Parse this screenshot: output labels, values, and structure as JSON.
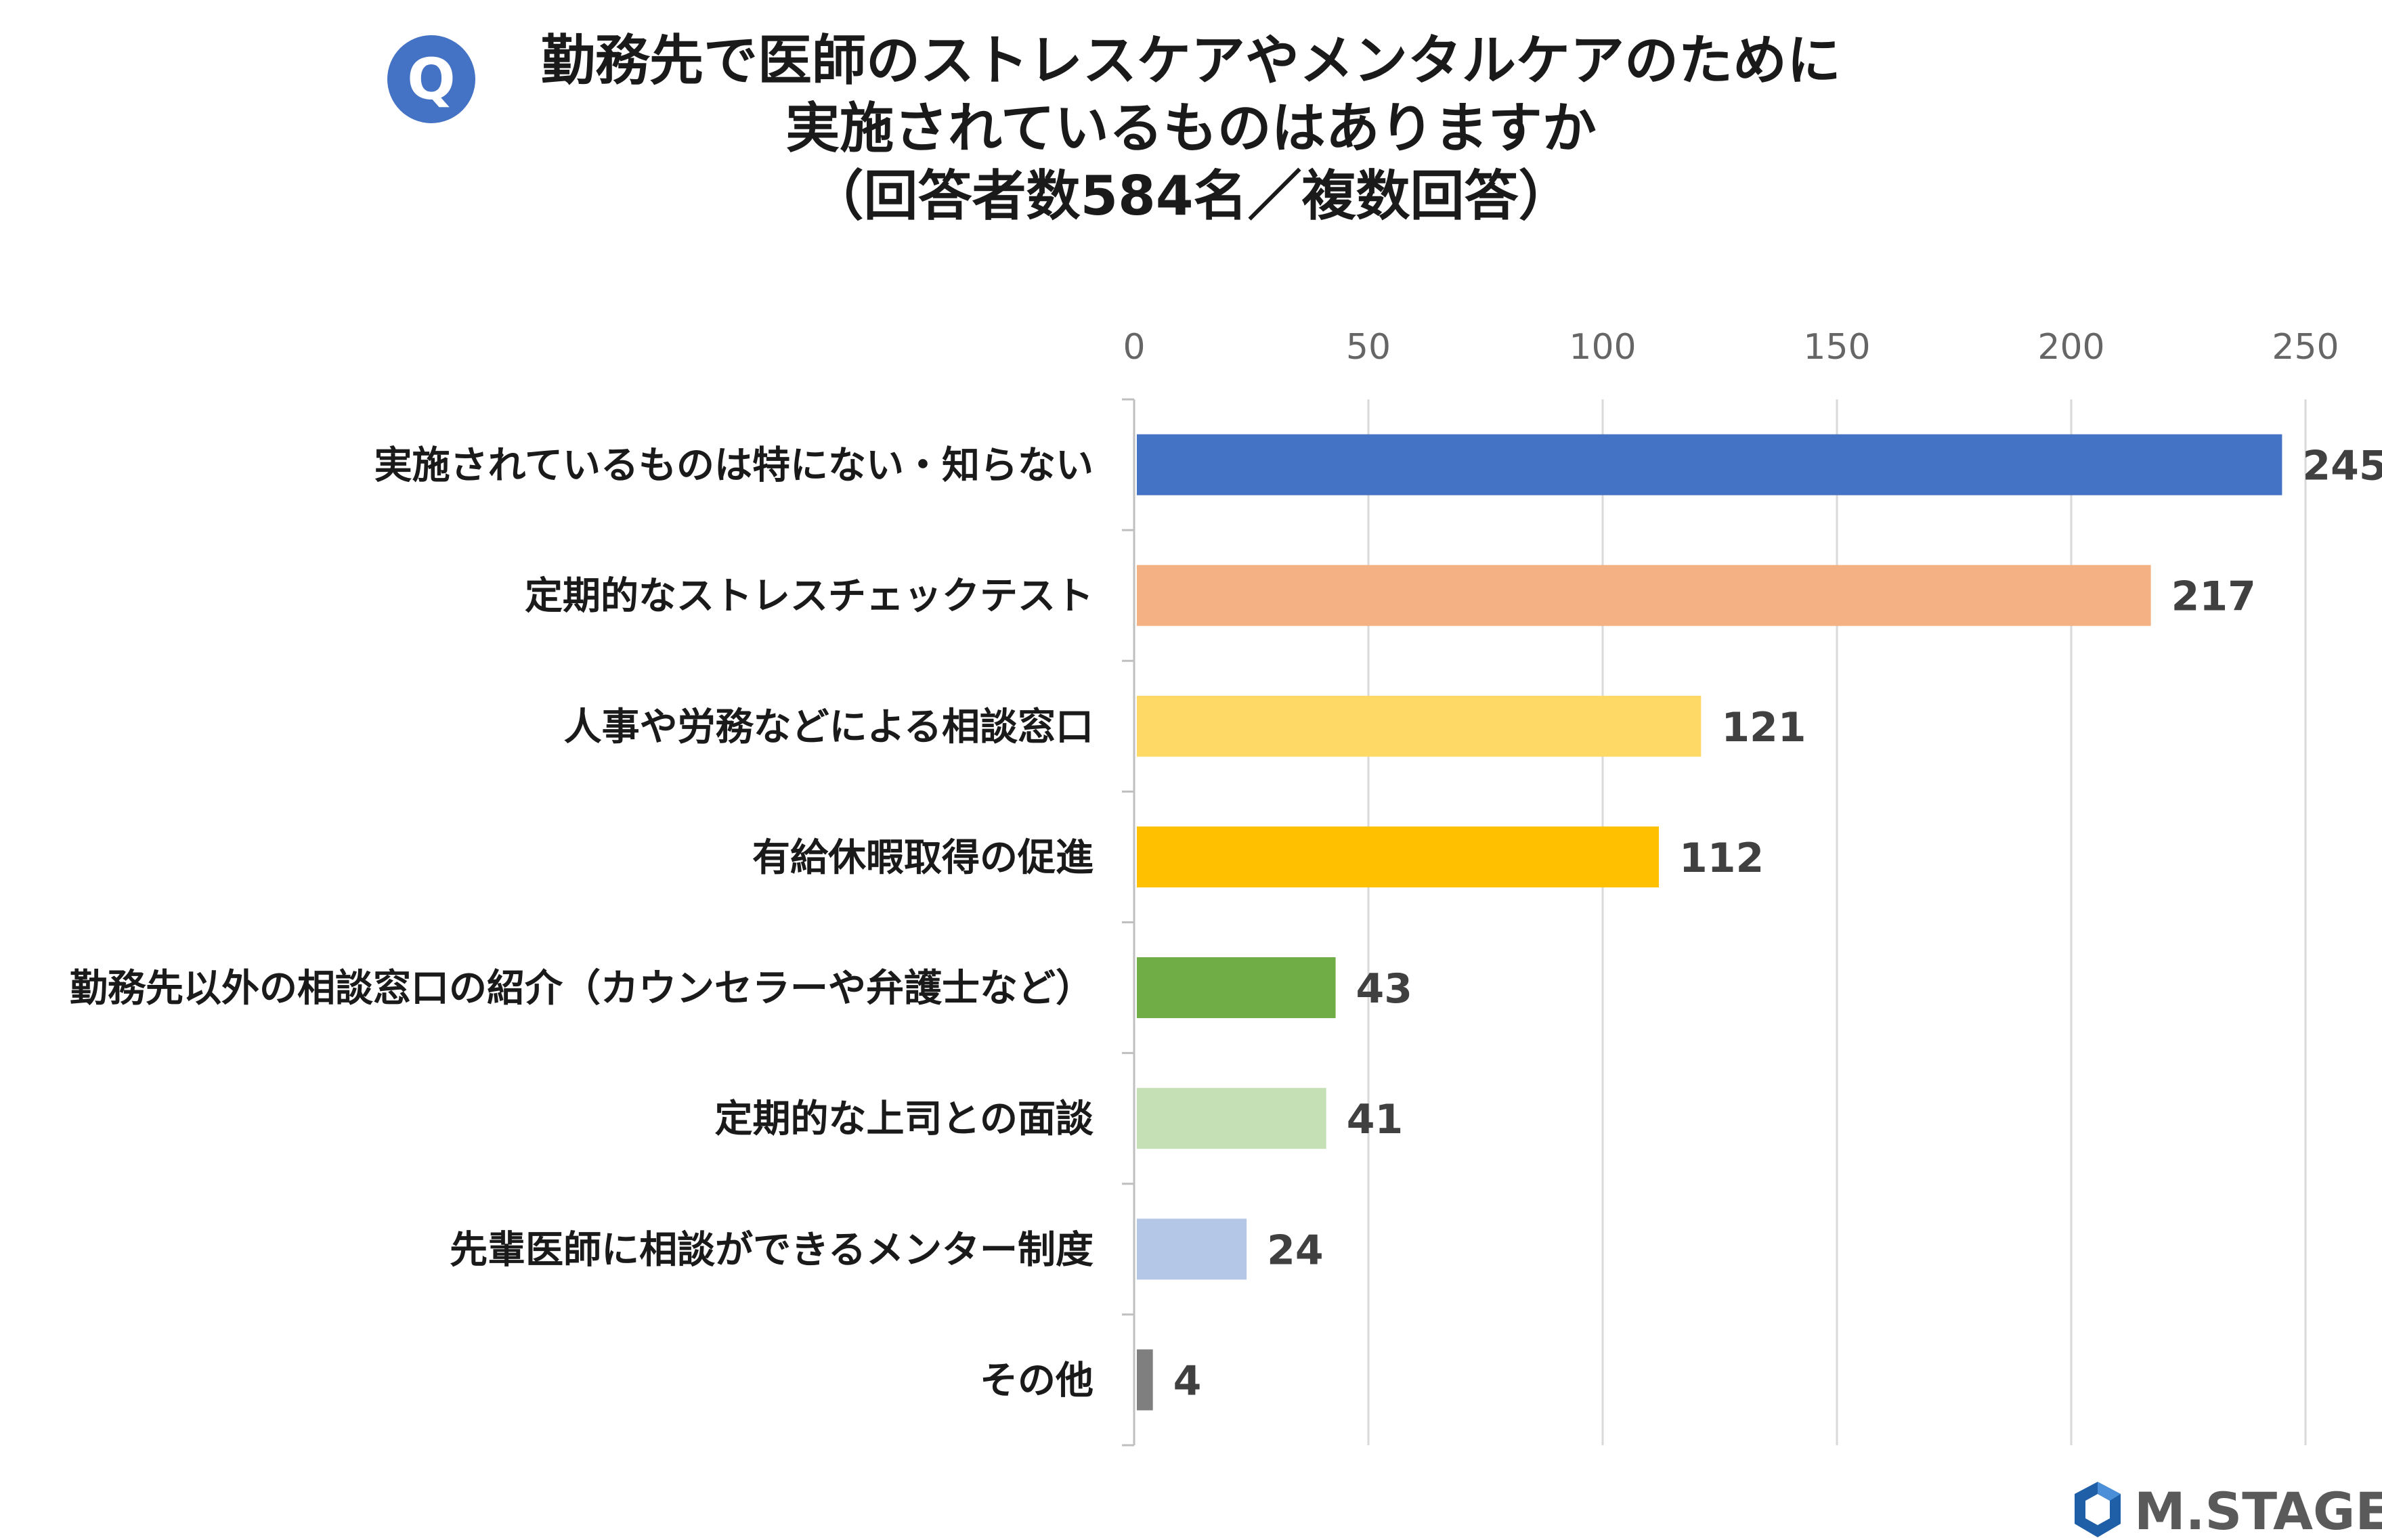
{
  "header": {
    "badge": "Q",
    "title_lines": [
      "勤務先で医師のストレスケアやメンタルケアのために",
      "実施されているものはありますか",
      "（回答者数584名／複数回答）"
    ]
  },
  "chart_data": {
    "type": "bar",
    "orientation": "horizontal",
    "title": "勤務先で医師のストレスケアやメンタルケアのために実施されているものはありますか（回答者数584名／複数回答）",
    "categories": [
      "実施されているものは特にない・知らない",
      "定期的なストレスチェックテスト",
      "人事や労務などによる相談窓口",
      "有給休暇取得の促進",
      "勤務先以外の相談窓口の紹介（カウンセラーや弁護士など）",
      "定期的な上司との面談",
      "先輩医師に相談ができるメンター制度",
      "その他"
    ],
    "values": [
      245,
      217,
      121,
      112,
      43,
      41,
      24,
      4
    ],
    "value_labels": [
      "245",
      "217",
      "121",
      "112",
      "43",
      "41",
      "24",
      "4"
    ],
    "colors": [
      "#4472c4",
      "#f4b183",
      "#ffd966",
      "#ffc000",
      "#70ad47",
      "#c5e0b4",
      "#b4c7e7",
      "#7f7f7f"
    ],
    "xlim": [
      0,
      250
    ],
    "ticks": [
      0,
      50,
      100,
      150,
      200,
      250
    ],
    "tick_labels": [
      "0",
      "50",
      "100",
      "150",
      "200",
      "250"
    ],
    "axis_position": "top",
    "grid": true,
    "legend": "none"
  },
  "logo": {
    "text": "M.STAGE",
    "brand_color": "#1f5fa8"
  }
}
